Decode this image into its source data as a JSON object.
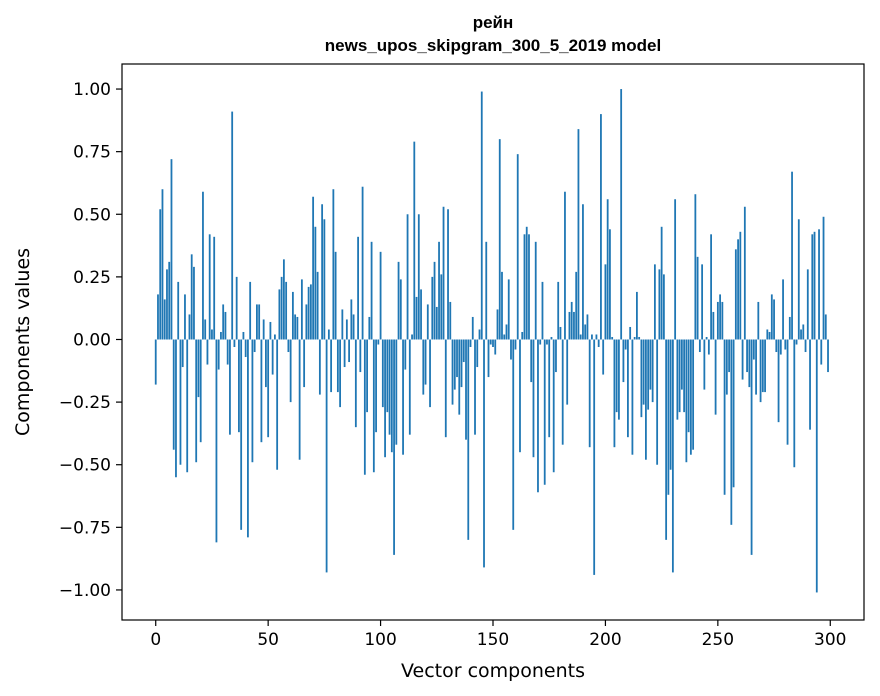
{
  "chart_data": {
    "type": "bar",
    "title": "рейн",
    "subtitle": "news_upos_skipgram_300_5_2019 model",
    "xlabel": "Vector components",
    "ylabel": "Components values",
    "xlim": [
      -15,
      315
    ],
    "ylim": [
      -1.12,
      1.1
    ],
    "xticks": [
      0,
      50,
      100,
      150,
      200,
      250,
      300
    ],
    "xtick_labels": [
      "0",
      "50",
      "100",
      "150",
      "200",
      "250",
      "300"
    ],
    "yticks": [
      1.0,
      0.75,
      0.5,
      0.25,
      0.0,
      -0.25,
      -0.5,
      -0.75,
      -1.0
    ],
    "ytick_labels": [
      "1.00",
      "0.75",
      "0.50",
      "0.25",
      "0.00",
      "−0.25",
      "−0.50",
      "−0.75",
      "−1.00"
    ],
    "grid": false,
    "bar_color": "#1f77b4",
    "x": [
      0,
      1,
      2,
      3,
      4,
      5,
      6,
      7,
      8,
      9,
      10,
      11,
      12,
      13,
      14,
      15,
      16,
      17,
      18,
      19,
      20,
      21,
      22,
      23,
      24,
      25,
      26,
      27,
      28,
      29,
      30,
      31,
      32,
      33,
      34,
      35,
      36,
      37,
      38,
      39,
      40,
      41,
      42,
      43,
      44,
      45,
      46,
      47,
      48,
      49,
      50,
      51,
      52,
      53,
      54,
      55,
      56,
      57,
      58,
      59,
      60,
      61,
      62,
      63,
      64,
      65,
      66,
      67,
      68,
      69,
      70,
      71,
      72,
      73,
      74,
      75,
      76,
      77,
      78,
      79,
      80,
      81,
      82,
      83,
      84,
      85,
      86,
      87,
      88,
      89,
      90,
      91,
      92,
      93,
      94,
      95,
      96,
      97,
      98,
      99,
      100,
      101,
      102,
      103,
      104,
      105,
      106,
      107,
      108,
      109,
      110,
      111,
      112,
      113,
      114,
      115,
      116,
      117,
      118,
      119,
      120,
      121,
      122,
      123,
      124,
      125,
      126,
      127,
      128,
      129,
      130,
      131,
      132,
      133,
      134,
      135,
      136,
      137,
      138,
      139,
      140,
      141,
      142,
      143,
      144,
      145,
      146,
      147,
      148,
      149,
      150,
      151,
      152,
      153,
      154,
      155,
      156,
      157,
      158,
      159,
      160,
      161,
      162,
      163,
      164,
      165,
      166,
      167,
      168,
      169,
      170,
      171,
      172,
      173,
      174,
      175,
      176,
      177,
      178,
      179,
      180,
      181,
      182,
      183,
      184,
      185,
      186,
      187,
      188,
      189,
      190,
      191,
      192,
      193,
      194,
      195,
      196,
      197,
      198,
      199,
      200,
      201,
      202,
      203,
      204,
      205,
      206,
      207,
      208,
      209,
      210,
      211,
      212,
      213,
      214,
      215,
      216,
      217,
      218,
      219,
      220,
      221,
      222,
      223,
      224,
      225,
      226,
      227,
      228,
      229,
      230,
      231,
      232,
      233,
      234,
      235,
      236,
      237,
      238,
      239,
      240,
      241,
      242,
      243,
      244,
      245,
      246,
      247,
      248,
      249,
      250,
      251,
      252,
      253,
      254,
      255,
      256,
      257,
      258,
      259,
      260,
      261,
      262,
      263,
      264,
      265,
      266,
      267,
      268,
      269,
      270,
      271,
      272,
      273,
      274,
      275,
      276,
      277,
      278,
      279,
      280,
      281,
      282,
      283,
      284,
      285,
      286,
      287,
      288,
      289,
      290,
      291,
      292,
      293,
      294,
      295,
      296,
      297,
      298,
      299
    ],
    "values": [
      -0.18,
      0.18,
      0.52,
      0.6,
      0.16,
      0.28,
      0.31,
      0.72,
      -0.44,
      -0.55,
      0.23,
      -0.5,
      -0.11,
      0.18,
      -0.53,
      0.1,
      0.34,
      0.29,
      -0.49,
      -0.23,
      -0.41,
      0.59,
      0.08,
      -0.1,
      0.42,
      0.04,
      0.41,
      -0.81,
      -0.12,
      0.03,
      0.14,
      0.11,
      -0.1,
      -0.38,
      0.91,
      -0.03,
      0.25,
      -0.37,
      -0.76,
      0.03,
      -0.07,
      -0.79,
      0.23,
      -0.49,
      -0.05,
      0.14,
      0.14,
      -0.41,
      0.08,
      -0.19,
      -0.39,
      0.07,
      -0.14,
      0.02,
      -0.52,
      0.2,
      0.25,
      0.32,
      0.23,
      -0.05,
      -0.25,
      0.19,
      0.1,
      0.09,
      -0.48,
      0.24,
      -0.19,
      0.14,
      0.21,
      0.22,
      0.57,
      0.45,
      0.27,
      -0.22,
      0.54,
      0.48,
      -0.93,
      0.04,
      -0.21,
      0.6,
      0.35,
      -0.21,
      -0.27,
      0.12,
      -0.11,
      0.08,
      -0.09,
      0.16,
      0.1,
      -0.35,
      0.41,
      -0.13,
      0.61,
      -0.54,
      -0.29,
      0.09,
      0.39,
      -0.53,
      -0.37,
      -0.02,
      0.35,
      -0.27,
      -0.47,
      -0.29,
      -0.38,
      -0.45,
      -0.86,
      -0.42,
      0.31,
      0.24,
      -0.46,
      -0.12,
      0.5,
      -0.38,
      0.02,
      0.79,
      0.17,
      0.5,
      0.2,
      -0.22,
      -0.18,
      0.14,
      -0.27,
      0.25,
      0.31,
      0.13,
      0.39,
      0.26,
      0.53,
      -0.39,
      0.52,
      0.15,
      -0.26,
      -0.2,
      -0.15,
      -0.3,
      -0.19,
      -0.09,
      -0.4,
      -0.8,
      -0.03,
      0.09,
      -0.38,
      -0.11,
      0.04,
      0.99,
      -0.91,
      0.39,
      -0.15,
      -0.02,
      -0.03,
      -0.06,
      0.12,
      0.8,
      0.27,
      0.02,
      0.06,
      0.24,
      -0.08,
      -0.76,
      -0.04,
      0.74,
      -0.45,
      0.03,
      0.42,
      0.45,
      0.42,
      -0.17,
      -0.47,
      0.39,
      -0.61,
      -0.02,
      0.23,
      -0.58,
      -0.02,
      -0.39,
      0.01,
      -0.53,
      -0.13,
      0.23,
      0.05,
      -0.42,
      0.59,
      -0.26,
      0.11,
      0.15,
      0.11,
      0.27,
      0.84,
      0.02,
      0.54,
      0.06,
      0.1,
      -0.43,
      0.02,
      -0.94,
      0.02,
      -0.03,
      0.9,
      -0.14,
      0.3,
      0.56,
      0.44,
      0.01,
      -0.43,
      -0.29,
      -0.32,
      1.0,
      -0.17,
      -0.04,
      -0.39,
      0.05,
      -0.46,
      0.01,
      0.19,
      0.01,
      -0.31,
      -0.26,
      -0.48,
      -0.28,
      -0.2,
      -0.25,
      0.3,
      -0.5,
      0.28,
      0.45,
      0.26,
      -0.8,
      -0.62,
      -0.52,
      -0.93,
      0.56,
      -0.32,
      -0.29,
      -0.2,
      -0.29,
      -0.49,
      -0.37,
      -0.46,
      -0.44,
      0.58,
      0.33,
      -0.05,
      0.3,
      -0.2,
      0.01,
      -0.06,
      0.42,
      0.11,
      -0.3,
      0.15,
      0.18,
      0.15,
      -0.62,
      -0.22,
      -0.13,
      -0.74,
      -0.59,
      0.36,
      0.4,
      0.43,
      -0.16,
      0.53,
      -0.13,
      -0.19,
      -0.86,
      -0.08,
      -0.22,
      0.15,
      -0.25,
      -0.21,
      -0.21,
      0.04,
      0.03,
      0.18,
      0.16,
      -0.05,
      -0.33,
      -0.06,
      0.24,
      -0.04,
      -0.42,
      0.09,
      0.67,
      -0.51,
      -0.02,
      0.48,
      0.04,
      0.06,
      -0.05,
      0.28,
      -0.36,
      0.42,
      0.43,
      -1.01,
      0.44,
      -0.1,
      0.49,
      0.1,
      -0.13
    ]
  }
}
